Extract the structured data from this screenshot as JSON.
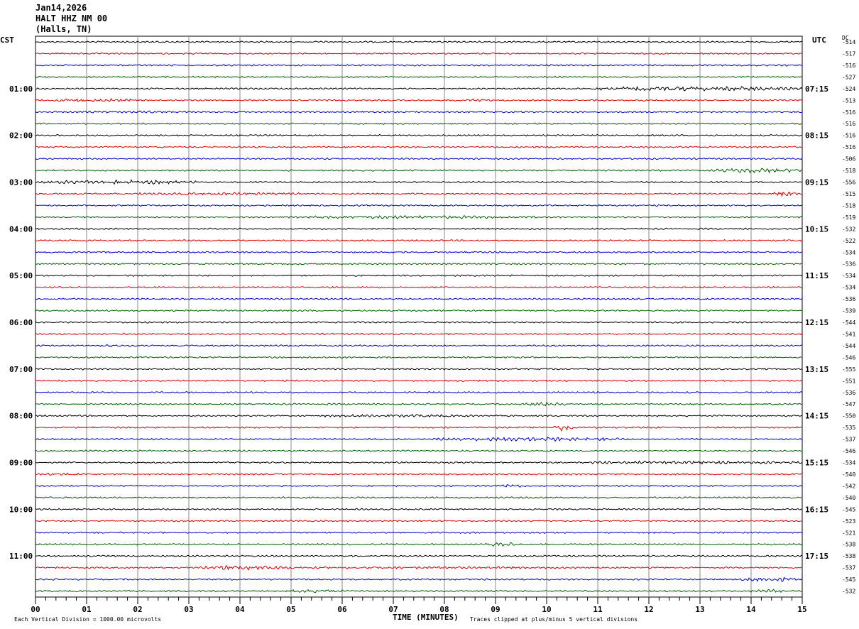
{
  "header": {
    "date": "Jan14,2026",
    "station": "HALT HHZ NM 00",
    "location": "(Halls, TN)"
  },
  "left_zone_label": "CST",
  "right_zone_label": "UTC",
  "dc_label": "DC",
  "footer": {
    "scale_note": "Each Vertical Division = 1000.00 microvolts",
    "clip_note": "Traces clipped at plus/minus 5 vertical divisions",
    "x_axis_title": "TIME (MINUTES)"
  },
  "colors": {
    "trace_cycle": [
      "#000000",
      "#e00000",
      "#0000d0",
      "#006000"
    ],
    "grid": "#888888",
    "frame": "#000000"
  },
  "chart_data": {
    "type": "line",
    "title": "HALT HHZ NM 00",
    "xlabel": "TIME (MINUTES)",
    "xlim": [
      0,
      15
    ],
    "x_ticks": [
      "00",
      "01",
      "02",
      "03",
      "04",
      "05",
      "06",
      "07",
      "08",
      "09",
      "10",
      "11",
      "12",
      "13",
      "14",
      "15"
    ],
    "grid": true,
    "left_hour_labels": [
      "01:00",
      "02:00",
      "03:00",
      "04:00",
      "05:00",
      "06:00",
      "07:00",
      "08:00",
      "09:00",
      "10:00",
      "11:00"
    ],
    "right_hour_labels": [
      "07:15",
      "08:15",
      "09:15",
      "10:15",
      "11:15",
      "12:15",
      "13:15",
      "14:15",
      "15:15",
      "16:15",
      "17:15"
    ],
    "dc_offsets": [
      -514,
      -517,
      -516,
      -527,
      -524,
      -513,
      -516,
      -516,
      -516,
      -516,
      -506,
      -518,
      -556,
      -515,
      -518,
      -519,
      -532,
      -522,
      -534,
      -536,
      -534,
      -534,
      -536,
      -539,
      -544,
      -541,
      -544,
      -546,
      -555,
      -551,
      -536,
      -547,
      -550,
      -535,
      -537,
      -546,
      -534,
      -540,
      -542,
      -540,
      -545,
      -523,
      -521,
      -538,
      -538,
      -537,
      -545,
      -532
    ],
    "events": [
      {
        "trace": 4,
        "from_min": 10.8,
        "to_min": 15.0,
        "amp": 2.6
      },
      {
        "trace": 5,
        "from_min": 0.0,
        "to_min": 2.0,
        "amp": 2.0
      },
      {
        "trace": 5,
        "from_min": 8.4,
        "to_min": 9.0,
        "amp": 1.6
      },
      {
        "trace": 6,
        "from_min": 0.8,
        "to_min": 3.0,
        "amp": 1.4
      },
      {
        "trace": 11,
        "from_min": 13.2,
        "to_min": 15.0,
        "amp": 2.6
      },
      {
        "trace": 12,
        "from_min": 0.0,
        "to_min": 3.2,
        "amp": 2.4
      },
      {
        "trace": 13,
        "from_min": 2.0,
        "to_min": 5.2,
        "amp": 1.6
      },
      {
        "trace": 13,
        "from_min": 14.4,
        "to_min": 14.9,
        "amp": 2.8
      },
      {
        "trace": 15,
        "from_min": 4.8,
        "to_min": 9.8,
        "amp": 1.8
      },
      {
        "trace": 26,
        "from_min": 1.2,
        "to_min": 1.9,
        "amp": 1.6
      },
      {
        "trace": 31,
        "from_min": 9.6,
        "to_min": 10.4,
        "amp": 2.6
      },
      {
        "trace": 32,
        "from_min": 5.4,
        "to_min": 8.6,
        "amp": 1.6
      },
      {
        "trace": 33,
        "from_min": 10.1,
        "to_min": 10.5,
        "amp": 4.2
      },
      {
        "trace": 34,
        "from_min": 7.8,
        "to_min": 11.6,
        "amp": 2.4
      },
      {
        "trace": 36,
        "from_min": 10.8,
        "to_min": 15.0,
        "amp": 1.8
      },
      {
        "trace": 37,
        "from_min": 0.1,
        "to_min": 1.0,
        "amp": 1.6
      },
      {
        "trace": 38,
        "from_min": 9.0,
        "to_min": 9.6,
        "amp": 1.8
      },
      {
        "trace": 43,
        "from_min": 8.8,
        "to_min": 9.4,
        "amp": 2.8
      },
      {
        "trace": 45,
        "from_min": 3.2,
        "to_min": 5.0,
        "amp": 2.6
      },
      {
        "trace": 45,
        "from_min": 5.0,
        "to_min": 11.0,
        "amp": 1.4
      },
      {
        "trace": 46,
        "from_min": 13.8,
        "to_min": 15.0,
        "amp": 2.6
      },
      {
        "trace": 47,
        "from_min": 4.9,
        "to_min": 6.0,
        "amp": 2.0
      },
      {
        "trace": 47,
        "from_min": 14.0,
        "to_min": 14.6,
        "amp": 2.0
      }
    ]
  }
}
